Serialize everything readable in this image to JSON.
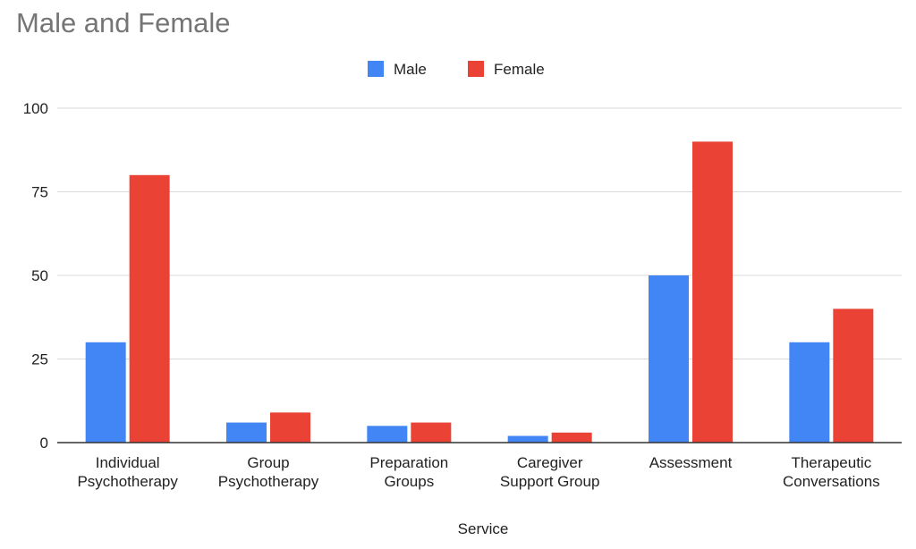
{
  "chart_data": {
    "type": "bar",
    "title": "Male and Female",
    "xlabel": "Service",
    "ylabel": "",
    "categories": [
      [
        "Individual",
        "Psychotherapy"
      ],
      [
        "Group",
        "Psychotherapy"
      ],
      [
        "Preparation",
        "Groups"
      ],
      [
        "Caregiver",
        "Support Group"
      ],
      [
        "Assessment"
      ],
      [
        "Therapeutic",
        "Conversations"
      ]
    ],
    "series": [
      {
        "name": "Male",
        "color": "#4285F4",
        "values": [
          30,
          6,
          5,
          2,
          50,
          30
        ]
      },
      {
        "name": "Female",
        "color": "#EA4335",
        "values": [
          80,
          9,
          6,
          3,
          90,
          40
        ]
      }
    ],
    "ylim": [
      0,
      100
    ],
    "yticks": [
      0,
      25,
      50,
      75,
      100
    ],
    "grid": true,
    "legend_position": "top-center"
  }
}
